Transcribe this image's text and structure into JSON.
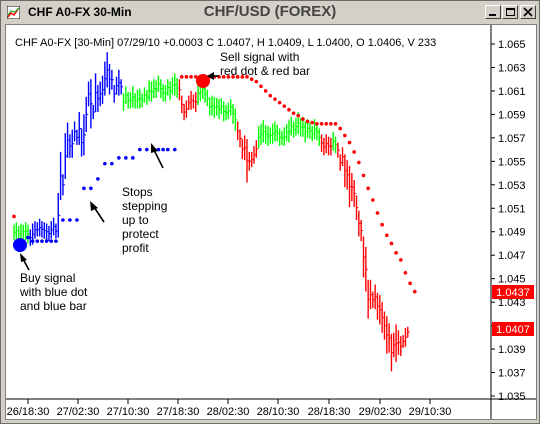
{
  "window": {
    "title": "CHF A0-FX 30-Min",
    "symbol_title": "CHF/USD (FOREX)"
  },
  "chart_header": "CHF A0-FX [30-Min] 07/29/10 +0.0003 C 1.0407, H 1.0409, L 1.0400, O 1.0406, V 233",
  "price_tags": {
    "upper": "1.0437",
    "lower": "1.0407",
    "color": "#ff0000"
  },
  "annotations": {
    "sell": [
      "Sell signal with",
      "red dot & red bar"
    ],
    "stops": [
      "Stops",
      "stepping",
      "up to",
      "protect",
      "profit"
    ],
    "buy": [
      "Buy signal",
      "with blue dot",
      "and blue bar"
    ]
  },
  "chart_data": {
    "type": "bar",
    "title": "CHF A0-FX [30-Min]",
    "y_ticks": [
      "1.065",
      "1.063",
      "1.061",
      "1.059",
      "1.057",
      "1.055",
      "1.053",
      "1.051",
      "1.049",
      "1.047",
      "1.045",
      "1.043",
      "1.041",
      "1.039",
      "1.037",
      "1.035"
    ],
    "x_ticks": [
      "26/18:30",
      "27/02:30",
      "27/10:30",
      "27/18:30",
      "28/02:30",
      "28/10:30",
      "28/18:30",
      "29/02:30",
      "29/10:30"
    ],
    "ylim": [
      1.035,
      1.065
    ],
    "colors": {
      "up_trend": "#00ff00",
      "long": "#0000ff",
      "short": "#ff0000"
    },
    "price_bars": [
      [
        1.0496,
        1.0483,
        "green"
      ],
      [
        1.0498,
        1.0484,
        "green"
      ],
      [
        1.0495,
        1.0481,
        "green"
      ],
      [
        1.0497,
        1.0483,
        "green"
      ],
      [
        1.0496,
        1.0484,
        "green"
      ],
      [
        1.0498,
        1.0483,
        "green"
      ],
      [
        1.0496,
        1.048,
        "green"
      ],
      [
        1.0492,
        1.0478,
        "blue"
      ],
      [
        1.0497,
        1.0479,
        "blue"
      ],
      [
        1.0499,
        1.0484,
        "blue"
      ],
      [
        1.0498,
        1.0486,
        "blue"
      ],
      [
        1.0501,
        1.0486,
        "blue"
      ],
      [
        1.0499,
        1.0485,
        "blue"
      ],
      [
        1.0498,
        1.0484,
        "blue"
      ],
      [
        1.0497,
        1.0483,
        "blue"
      ],
      [
        1.0495,
        1.0482,
        "blue"
      ],
      [
        1.0499,
        1.0484,
        "blue"
      ],
      [
        1.0502,
        1.0487,
        "blue"
      ],
      [
        1.0497,
        1.0484,
        "blue"
      ],
      [
        1.0523,
        1.0485,
        "blue"
      ],
      [
        1.0558,
        1.0517,
        "blue"
      ],
      [
        1.0539,
        1.0521,
        "blue"
      ],
      [
        1.0574,
        1.0535,
        "blue"
      ],
      [
        1.0583,
        1.0553,
        "blue"
      ],
      [
        1.0573,
        1.0553,
        "blue"
      ],
      [
        1.0577,
        1.0553,
        "blue"
      ],
      [
        1.0584,
        1.0567,
        "blue"
      ],
      [
        1.0577,
        1.0564,
        "blue"
      ],
      [
        1.0592,
        1.0564,
        "blue"
      ],
      [
        1.0578,
        1.0554,
        "blue"
      ],
      [
        1.059,
        1.0555,
        "blue"
      ],
      [
        1.0605,
        1.0575,
        "blue"
      ],
      [
        1.0618,
        1.0597,
        "blue"
      ],
      [
        1.062,
        1.0578,
        "blue"
      ],
      [
        1.0598,
        1.0586,
        "blue"
      ],
      [
        1.0625,
        1.0592,
        "blue"
      ],
      [
        1.0615,
        1.0592,
        "blue"
      ],
      [
        1.0618,
        1.0597,
        "blue"
      ],
      [
        1.0623,
        1.0599,
        "blue"
      ],
      [
        1.0635,
        1.0606,
        "blue"
      ],
      [
        1.0643,
        1.0613,
        "blue"
      ],
      [
        1.0633,
        1.0607,
        "blue"
      ],
      [
        1.0628,
        1.0611,
        "blue"
      ],
      [
        1.0615,
        1.06,
        "blue"
      ],
      [
        1.0622,
        1.0607,
        "blue"
      ],
      [
        1.0628,
        1.0606,
        "blue"
      ],
      [
        1.062,
        1.0607,
        "blue"
      ],
      [
        1.0608,
        1.0593,
        "green"
      ],
      [
        1.0614,
        1.0599,
        "green"
      ],
      [
        1.0609,
        1.0595,
        "green"
      ],
      [
        1.0609,
        1.0595,
        "green"
      ],
      [
        1.0614,
        1.0596,
        "green"
      ],
      [
        1.0608,
        1.0595,
        "green"
      ],
      [
        1.0611,
        1.0595,
        "green"
      ],
      [
        1.0612,
        1.0595,
        "green"
      ],
      [
        1.0608,
        1.0596,
        "green"
      ],
      [
        1.0613,
        1.06,
        "green"
      ],
      [
        1.0611,
        1.0598,
        "green"
      ],
      [
        1.0619,
        1.0601,
        "green"
      ],
      [
        1.0618,
        1.0601,
        "green"
      ],
      [
        1.062,
        1.0604,
        "green"
      ],
      [
        1.0619,
        1.0604,
        "green"
      ],
      [
        1.0623,
        1.0609,
        "green"
      ],
      [
        1.062,
        1.0604,
        "green"
      ],
      [
        1.0616,
        1.0601,
        "green"
      ],
      [
        1.0615,
        1.0601,
        "green"
      ],
      [
        1.062,
        1.0606,
        "green"
      ],
      [
        1.0618,
        1.0602,
        "green"
      ],
      [
        1.0622,
        1.0607,
        "green"
      ],
      [
        1.0625,
        1.0606,
        "green"
      ],
      [
        1.0621,
        1.0604,
        "green"
      ],
      [
        1.062,
        1.0602,
        "red"
      ],
      [
        1.0606,
        1.0591,
        "red"
      ],
      [
        1.0599,
        1.0585,
        "red"
      ],
      [
        1.0602,
        1.0587,
        "red"
      ],
      [
        1.0606,
        1.0594,
        "red"
      ],
      [
        1.061,
        1.0594,
        "red"
      ],
      [
        1.0607,
        1.0595,
        "red"
      ],
      [
        1.0609,
        1.0592,
        "red"
      ],
      [
        1.0618,
        1.0598,
        "green"
      ],
      [
        1.0617,
        1.0601,
        "green"
      ],
      [
        1.062,
        1.0603,
        "green"
      ],
      [
        1.0615,
        1.06,
        "green"
      ],
      [
        1.0611,
        1.0597,
        "green"
      ],
      [
        1.0604,
        1.0589,
        "green"
      ],
      [
        1.0606,
        1.0589,
        "green"
      ],
      [
        1.0605,
        1.0587,
        "green"
      ],
      [
        1.0604,
        1.0589,
        "green"
      ],
      [
        1.0603,
        1.0586,
        "green"
      ],
      [
        1.0604,
        1.059,
        "green"
      ],
      [
        1.0601,
        1.0584,
        "green"
      ],
      [
        1.0598,
        1.0585,
        "green"
      ],
      [
        1.06,
        1.0586,
        "green"
      ],
      [
        1.0603,
        1.0589,
        "green"
      ],
      [
        1.0599,
        1.0582,
        "green"
      ],
      [
        1.0595,
        1.0576,
        "green"
      ],
      [
        1.0584,
        1.0568,
        "red"
      ],
      [
        1.0577,
        1.0562,
        "red"
      ],
      [
        1.0569,
        1.0552,
        "red"
      ],
      [
        1.0572,
        1.0551,
        "red"
      ],
      [
        1.0569,
        1.0532,
        "red"
      ],
      [
        1.0558,
        1.0542,
        "red"
      ],
      [
        1.0558,
        1.0545,
        "red"
      ],
      [
        1.0563,
        1.0548,
        "red"
      ],
      [
        1.0568,
        1.0553,
        "red"
      ],
      [
        1.058,
        1.0561,
        "green"
      ],
      [
        1.0582,
        1.0564,
        "green"
      ],
      [
        1.0585,
        1.0566,
        "green"
      ],
      [
        1.0581,
        1.0565,
        "green"
      ],
      [
        1.058,
        1.0563,
        "green"
      ],
      [
        1.0579,
        1.0565,
        "green"
      ],
      [
        1.0582,
        1.0565,
        "green"
      ],
      [
        1.0584,
        1.0567,
        "green"
      ],
      [
        1.0581,
        1.0567,
        "green"
      ],
      [
        1.0578,
        1.0563,
        "green"
      ],
      [
        1.0576,
        1.0564,
        "green"
      ],
      [
        1.0579,
        1.0563,
        "green"
      ],
      [
        1.0582,
        1.0567,
        "green"
      ],
      [
        1.0585,
        1.0566,
        "green"
      ],
      [
        1.0588,
        1.0572,
        "green"
      ],
      [
        1.0584,
        1.057,
        "green"
      ],
      [
        1.0587,
        1.0572,
        "green"
      ],
      [
        1.0592,
        1.0573,
        "green"
      ],
      [
        1.0587,
        1.0571,
        "green"
      ],
      [
        1.0588,
        1.0571,
        "green"
      ],
      [
        1.0584,
        1.0566,
        "green"
      ],
      [
        1.0586,
        1.057,
        "green"
      ],
      [
        1.0583,
        1.0569,
        "green"
      ],
      [
        1.058,
        1.0567,
        "green"
      ],
      [
        1.0586,
        1.0569,
        "green"
      ],
      [
        1.0582,
        1.0568,
        "green"
      ],
      [
        1.0578,
        1.0563,
        "green"
      ],
      [
        1.0573,
        1.0558,
        "red"
      ],
      [
        1.057,
        1.0555,
        "red"
      ],
      [
        1.0573,
        1.0557,
        "red"
      ],
      [
        1.0571,
        1.0555,
        "red"
      ],
      [
        1.057,
        1.0555,
        "red"
      ],
      [
        1.0575,
        1.0559,
        "green"
      ],
      [
        1.0571,
        1.0557,
        "green"
      ],
      [
        1.0566,
        1.0553,
        "red"
      ],
      [
        1.0556,
        1.0542,
        "red"
      ],
      [
        1.0562,
        1.0546,
        "red"
      ],
      [
        1.0556,
        1.0528,
        "red"
      ],
      [
        1.0551,
        1.0526,
        "red"
      ],
      [
        1.0546,
        1.0511,
        "red"
      ],
      [
        1.054,
        1.0516,
        "red"
      ],
      [
        1.0534,
        1.0511,
        "red"
      ],
      [
        1.0521,
        1.05,
        "red"
      ],
      [
        1.0508,
        1.0486,
        "red"
      ],
      [
        1.05,
        1.0482,
        "red"
      ],
      [
        1.0486,
        1.0451,
        "red"
      ],
      [
        1.0477,
        1.0439,
        "red"
      ],
      [
        1.0449,
        1.0416,
        "red"
      ],
      [
        1.0449,
        1.0424,
        "red"
      ],
      [
        1.0439,
        1.0425,
        "red"
      ],
      [
        1.0445,
        1.0424,
        "red"
      ],
      [
        1.0438,
        1.0415,
        "red"
      ],
      [
        1.0436,
        1.0411,
        "red"
      ],
      [
        1.043,
        1.0404,
        "red"
      ],
      [
        1.0422,
        1.0398,
        "red"
      ],
      [
        1.0418,
        1.0386,
        "red"
      ],
      [
        1.0412,
        1.0387,
        "red"
      ],
      [
        1.0403,
        1.0371,
        "red"
      ],
      [
        1.0404,
        1.0383,
        "red"
      ],
      [
        1.0411,
        1.0379,
        "red"
      ],
      [
        1.0406,
        1.0385,
        "red"
      ],
      [
        1.0401,
        1.0384,
        "red"
      ],
      [
        1.0402,
        1.0391,
        "red"
      ],
      [
        1.0408,
        1.0392,
        "red"
      ],
      [
        1.0409,
        1.04,
        "red"
      ]
    ],
    "stop_dots": [
      [
        0,
        1.0503,
        "red"
      ],
      [
        6,
        1.0485,
        "blue"
      ],
      [
        8,
        1.0482,
        "blue"
      ],
      [
        10,
        1.0482,
        "blue"
      ],
      [
        12,
        1.0482,
        "blue"
      ],
      [
        14,
        1.0482,
        "blue"
      ],
      [
        16,
        1.0482,
        "blue"
      ],
      [
        18,
        1.0482,
        "blue"
      ],
      [
        21,
        1.05,
        "blue"
      ],
      [
        24,
        1.05,
        "blue"
      ],
      [
        27,
        1.05,
        "blue"
      ],
      [
        30,
        1.0527,
        "blue"
      ],
      [
        33,
        1.0527,
        "blue"
      ],
      [
        36,
        1.0535,
        "blue"
      ],
      [
        39,
        1.0548,
        "blue"
      ],
      [
        42,
        1.0548,
        "blue"
      ],
      [
        45,
        1.0553,
        "blue"
      ],
      [
        48,
        1.0553,
        "blue"
      ],
      [
        51,
        1.0553,
        "blue"
      ],
      [
        54,
        1.056,
        "blue"
      ],
      [
        57,
        1.056,
        "blue"
      ],
      [
        60,
        1.056,
        "blue"
      ],
      [
        62,
        1.056,
        "blue"
      ],
      [
        64,
        1.056,
        "blue"
      ],
      [
        66,
        1.056,
        "blue"
      ],
      [
        69,
        1.056,
        "blue"
      ],
      [
        72,
        1.056,
        "blue"
      ],
      [
        75,
        1.056,
        "blue"
      ],
      [
        78,
        1.056,
        "blue"
      ],
      [
        81,
        1.0566,
        "blue"
      ],
      [
        84,
        1.0566,
        "blue"
      ],
      [
        87,
        1.0566,
        "blue"
      ],
      [
        90,
        1.0566,
        "blue"
      ],
      [
        93,
        1.058,
        "blue"
      ],
      [
        96,
        1.058,
        "blue"
      ],
      [
        99,
        1.058,
        "blue"
      ],
      [
        102,
        1.058,
        "blue"
      ],
      [
        105,
        1.058,
        "blue"
      ],
      [
        108,
        1.058,
        "blue"
      ],
      [
        111,
        1.0585,
        "blue"
      ],
      [
        113,
        1.0585,
        "blue"
      ],
      [
        115,
        1.0585,
        "blue"
      ],
      [
        118,
        1.0585,
        "blue"
      ],
      [
        121,
        1.0585,
        "blue"
      ],
      [
        124,
        1.0585,
        "blue"
      ],
      [
        127,
        1.0585,
        "blue"
      ],
      [
        130,
        1.0585,
        "blue"
      ],
      [
        133,
        1.0585,
        "blue"
      ],
      [
        136,
        1.0585,
        "blue"
      ],
      [
        139,
        1.0585,
        "blue"
      ],
      [
        142,
        1.0585,
        "blue"
      ],
      [
        145,
        1.0585,
        "blue"
      ],
      [
        148,
        1.0585,
        "blue"
      ],
      [
        151,
        1.0585,
        "blue"
      ],
      [
        154,
        1.0585,
        "blue"
      ],
      [
        156,
        1.0585,
        "blue"
      ],
      [
        158,
        1.0585,
        "blue"
      ],
      [
        160,
        1.0585,
        "blue"
      ],
      [
        162,
        1.0585,
        "blue"
      ],
      [
        164,
        1.0585,
        "blue"
      ],
      [
        166,
        1.0585,
        "blue"
      ],
      [
        168,
        1.0585,
        "blue"
      ],
      [
        170,
        1.0585,
        "blue"
      ],
      [
        172,
        1.0585,
        "blue"
      ],
      [
        174,
        1.0585,
        "blue"
      ],
      [
        176,
        1.0585,
        "blue"
      ],
      [
        178,
        1.0585,
        "blue"
      ],
      [
        180,
        1.0585,
        "blue"
      ],
      [
        182,
        1.0585,
        "blue"
      ],
      [
        184,
        1.0585,
        "blue"
      ],
      [
        186,
        1.0585,
        "blue"
      ],
      [
        188,
        1.0585,
        "blue"
      ],
      [
        190,
        1.0585,
        "blue"
      ],
      [
        192,
        1.0585,
        "blue"
      ],
      [
        194,
        1.0585,
        "blue"
      ]
    ],
    "sell_stop_dots": [
      [
        72,
        1.0622
      ],
      [
        74,
        1.0622
      ],
      [
        76,
        1.0622
      ],
      [
        78,
        1.0622
      ],
      [
        80,
        1.0622
      ],
      [
        82,
        1.0622
      ],
      [
        84,
        1.0622
      ],
      [
        86,
        1.0622
      ],
      [
        88,
        1.0622
      ],
      [
        90,
        1.0622
      ],
      [
        92,
        1.0622
      ],
      [
        94,
        1.0622
      ],
      [
        96,
        1.0622
      ],
      [
        98,
        1.0622
      ],
      [
        100,
        1.0622
      ],
      [
        102,
        1.062
      ],
      [
        104,
        1.0618
      ],
      [
        106,
        1.0614
      ],
      [
        108,
        1.061
      ],
      [
        110,
        1.0606
      ],
      [
        112,
        1.0603
      ],
      [
        114,
        1.06
      ],
      [
        116,
        1.0597
      ],
      [
        118,
        1.0594
      ],
      [
        120,
        1.0591
      ],
      [
        122,
        1.0589
      ],
      [
        124,
        1.0586
      ],
      [
        126,
        1.0584
      ],
      [
        128,
        1.0583
      ],
      [
        130,
        1.0582
      ],
      [
        132,
        1.0582
      ],
      [
        134,
        1.0582
      ],
      [
        136,
        1.0582
      ],
      [
        138,
        1.0582
      ],
      [
        140,
        1.0578
      ],
      [
        142,
        1.0572
      ],
      [
        144,
        1.0566
      ],
      [
        146,
        1.0558
      ],
      [
        148,
        1.0549
      ],
      [
        150,
        1.0538
      ],
      [
        152,
        1.0527
      ],
      [
        154,
        1.0517
      ],
      [
        156,
        1.0506
      ],
      [
        158,
        1.0496
      ],
      [
        160,
        1.0487
      ],
      [
        162,
        1.048
      ],
      [
        164,
        1.0472
      ],
      [
        166,
        1.0466
      ],
      [
        168,
        1.0455
      ],
      [
        170,
        1.0446
      ],
      [
        172,
        1.0439
      ]
    ]
  }
}
